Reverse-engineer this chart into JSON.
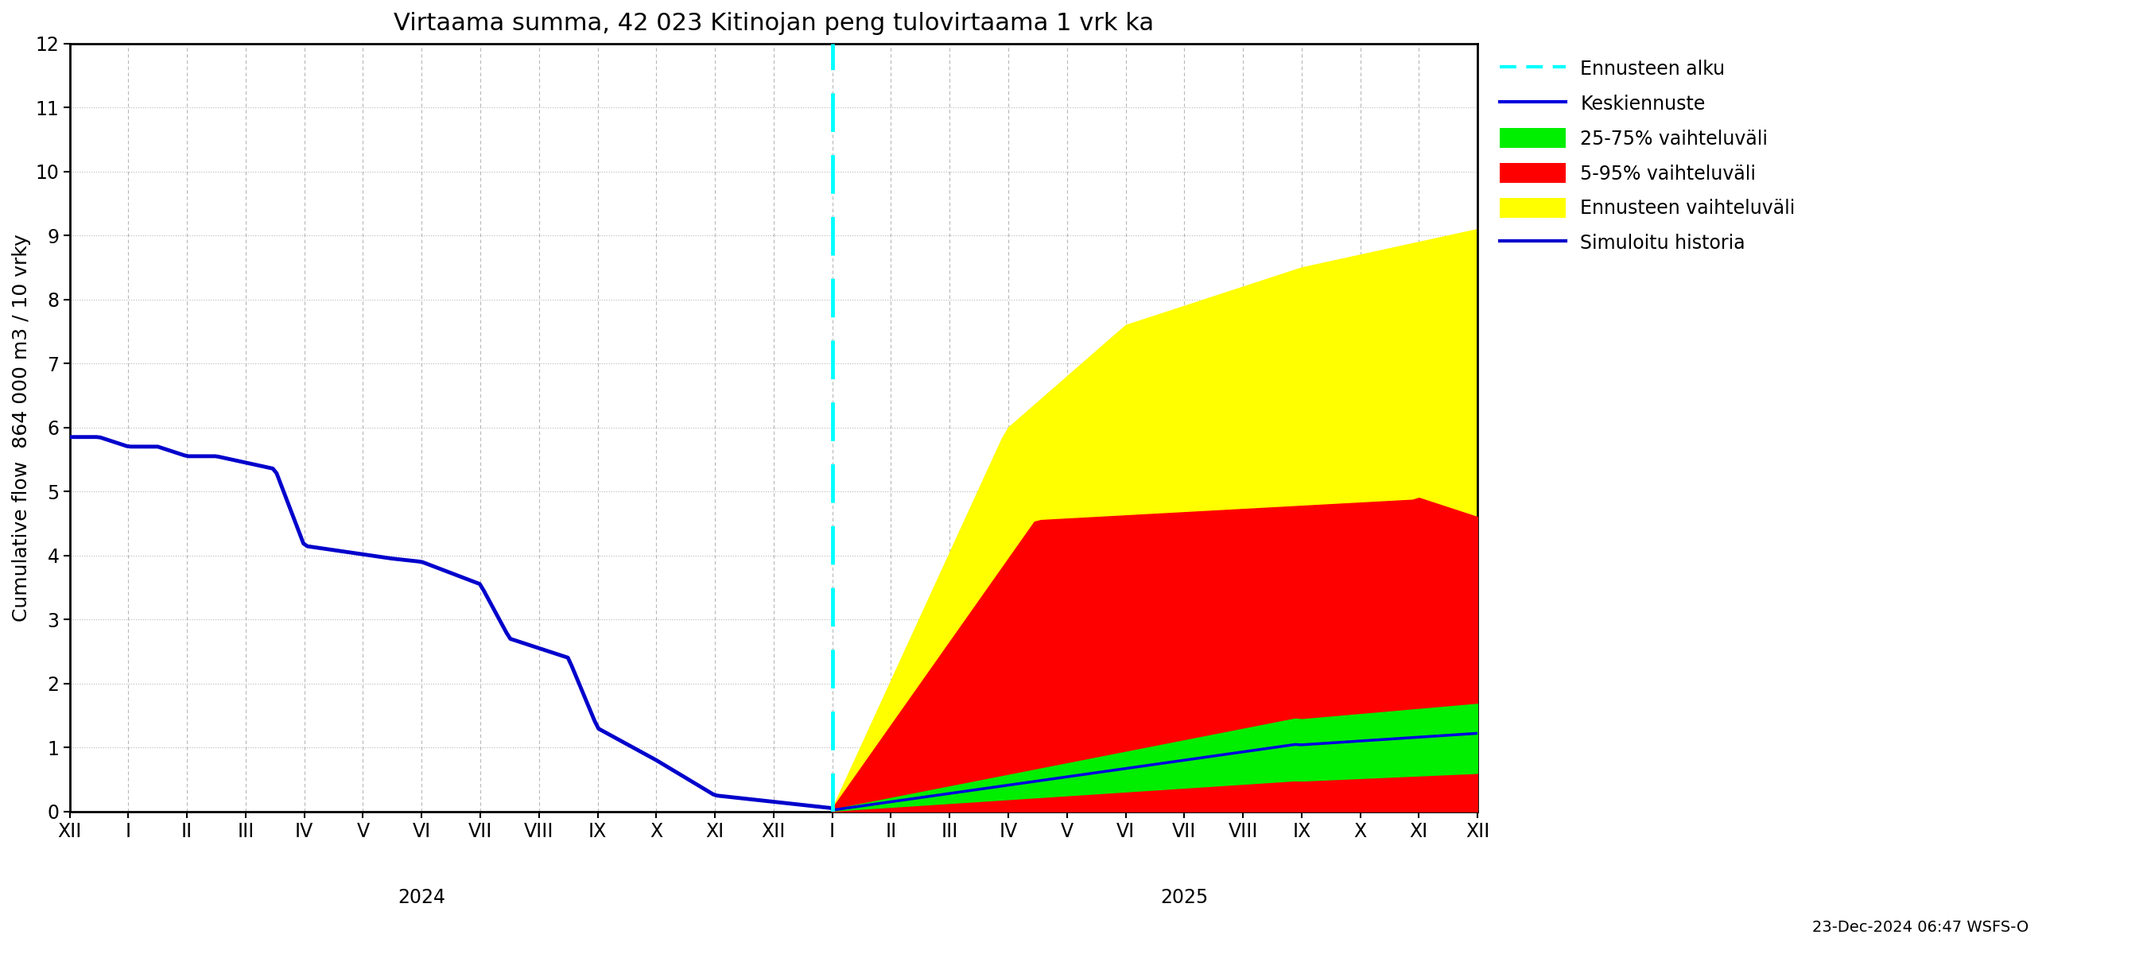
{
  "title": "Virtaama summa, 42 023 Kitinojan peng tulovirtaama 1 vrk ka",
  "ylabel": "Cumulative flow  864 000 m3 / 10 vrky",
  "ylim": [
    0,
    12
  ],
  "yticks": [
    0,
    1,
    2,
    3,
    4,
    5,
    6,
    7,
    8,
    9,
    10,
    11,
    12
  ],
  "background_color": "#ffffff",
  "plot_bg_color": "#ffffff",
  "grid_color": "#888888",
  "forecast_line_color": "#00ffff",
  "history_color": "#0000cc",
  "mean_color": "#0000dd",
  "p25_75_color": "#00ee00",
  "p5_95_color": "#ff0000",
  "ensemble_color": "#ffff00",
  "title_fontsize": 22,
  "label_fontsize": 18,
  "tick_fontsize": 17,
  "legend_fontsize": 17,
  "date_label": "23-Dec-2024 06:47 WSFS-O",
  "legend_labels": [
    "Ennusteen alku",
    "Keskiennuste",
    "25-75% vaihteluväli",
    "5-95% vaihteluväli",
    "Ennusteen vaihteluväli",
    "Simuloitu historia"
  ],
  "month_labels": [
    "XII",
    "I",
    "II",
    "III",
    "IV",
    "V",
    "VI",
    "VII",
    "VIII",
    "IX",
    "X",
    "XI",
    "XII",
    "I",
    "II",
    "III",
    "IV",
    "V",
    "VI",
    "VII",
    "VIII",
    "IX",
    "X",
    "XI",
    "XII"
  ],
  "year_labels": [
    "2024",
    "2025"
  ],
  "year_label_indices": [
    6,
    19
  ]
}
